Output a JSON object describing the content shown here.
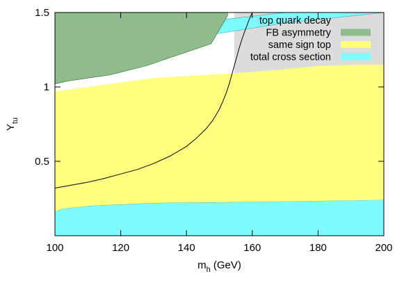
{
  "chart_data": {
    "type": "area",
    "title": "",
    "xlabel": {
      "main": "m",
      "sub": "h",
      "rest": " (GeV)"
    },
    "ylabel": {
      "main": "Y",
      "sub": "tu"
    },
    "xlim": [
      100,
      200
    ],
    "ylim": [
      0,
      1.5
    ],
    "x_ticks": [
      100,
      120,
      140,
      160,
      180,
      200
    ],
    "x_tick_labels": [
      "100",
      "120",
      "140",
      "160",
      "180",
      "200"
    ],
    "y_ticks": [
      0.5,
      1,
      1.5
    ],
    "y_tick_labels": [
      "0.5",
      "1",
      "1.5"
    ],
    "grid": false,
    "legend_position": "top-right",
    "colors": {
      "top_quark_decay": "#dcdcdc",
      "fb_asymmetry": "#8fbc8f",
      "same_sign_top": "#ffff80",
      "total_cross_section": "#7ffaff",
      "curve": "#000000"
    },
    "series": [
      {
        "name": "top quark decay",
        "kind": "region",
        "polygon": [
          [
            154.5,
            1.5
          ],
          [
            200,
            1.5
          ],
          [
            200,
            1.14
          ],
          [
            161.5,
            1.03
          ],
          [
            154.5,
            1.03
          ]
        ]
      },
      {
        "name": "total cross section",
        "kind": "region",
        "polygon": [
          [
            100,
            1.3
          ],
          [
            100,
            1.24
          ],
          [
            104,
            1.24
          ],
          [
            150,
            1.36
          ],
          [
            170,
            1.43
          ],
          [
            200,
            1.5
          ],
          [
            200,
            1.5
          ],
          [
            185,
            1.5
          ],
          [
            170,
            1.5
          ],
          [
            150,
            1.45
          ],
          [
            125,
            1.37
          ],
          [
            104,
            1.3
          ]
        ]
      },
      {
        "name": "total cross section",
        "kind": "region",
        "polygon": [
          [
            100,
            0
          ],
          [
            200,
            0
          ],
          [
            200,
            0.24
          ],
          [
            150,
            0.225
          ],
          [
            130,
            0.22
          ],
          [
            110,
            0.2
          ],
          [
            102,
            0.18
          ],
          [
            100,
            0.16
          ]
        ]
      },
      {
        "name": "same sign top",
        "kind": "region",
        "polygon": [
          [
            100,
            0.16
          ],
          [
            102,
            0.18
          ],
          [
            110,
            0.2
          ],
          [
            130,
            0.22
          ],
          [
            150,
            0.225
          ],
          [
            200,
            0.24
          ],
          [
            200,
            1.15
          ],
          [
            192,
            1.15
          ],
          [
            180,
            1.14
          ],
          [
            160,
            1.1
          ],
          [
            130,
            1.06
          ],
          [
            110,
            1.0
          ],
          [
            100,
            0.97
          ]
        ]
      },
      {
        "name": "FB asymmetry",
        "kind": "region",
        "polygon": [
          [
            100,
            1.5
          ],
          [
            152.5,
            1.5
          ],
          [
            152.5,
            1.48
          ],
          [
            147.5,
            1.29
          ],
          [
            127.5,
            1.14
          ],
          [
            116.5,
            1.08
          ],
          [
            104,
            1.04
          ],
          [
            100,
            1.02
          ]
        ]
      },
      {
        "name": "",
        "kind": "curve",
        "x": [
          100,
          105,
          110,
          115,
          120,
          125,
          130,
          135,
          140,
          143,
          146,
          148,
          150,
          151,
          152,
          153,
          154,
          155,
          156,
          157,
          158,
          159,
          160
        ],
        "y": [
          0.32,
          0.34,
          0.36,
          0.385,
          0.415,
          0.445,
          0.485,
          0.535,
          0.6,
          0.655,
          0.72,
          0.775,
          0.85,
          0.9,
          0.955,
          1.02,
          1.1,
          1.18,
          1.26,
          1.33,
          1.39,
          1.45,
          1.5
        ]
      }
    ],
    "legend": [
      {
        "label": "top quark decay",
        "color": "#dcdcdc"
      },
      {
        "label": "FB asymmetry",
        "color": "#8fbc8f"
      },
      {
        "label": "same sign top",
        "color": "#ffff80"
      },
      {
        "label": "total cross section",
        "color": "#7ffaff"
      }
    ]
  }
}
